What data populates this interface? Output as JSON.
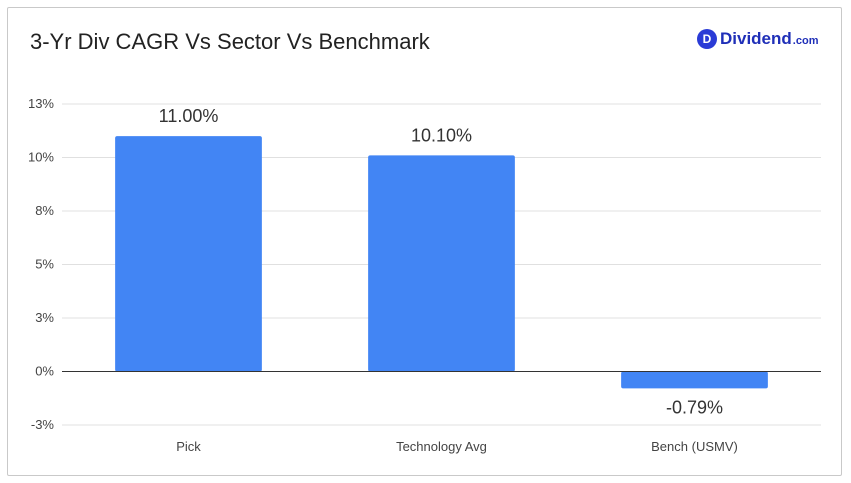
{
  "header": {
    "title": "3-Yr Div CAGR Vs Sector Vs Benchmark",
    "logo": {
      "mark": "D",
      "name": "Dividend",
      "tld": ".com"
    }
  },
  "chart_data": {
    "type": "bar",
    "title": "3-Yr Div CAGR Vs Sector Vs Benchmark",
    "xlabel": "",
    "ylabel": "",
    "categories": [
      "Pick",
      "Technology Avg",
      "Bench (USMV)"
    ],
    "values": [
      11.0,
      10.1,
      -0.79
    ],
    "data_labels": [
      "11.00%",
      "10.10%",
      "-0.79%"
    ],
    "ylim": [
      -2.5,
      12.5
    ],
    "yticks": [
      -2.5,
      0,
      2.5,
      5,
      7.5,
      10,
      12.5
    ],
    "ytick_labels": [
      "-3%",
      "0%",
      "3%",
      "5%",
      "8%",
      "10%",
      "13%"
    ],
    "grid": true,
    "legend": "none",
    "colors": {
      "bar": "#4285f4",
      "grid": "#e0e0e0",
      "axis": "#333333",
      "tick_text": "#444444",
      "label_text": "#333333"
    }
  }
}
